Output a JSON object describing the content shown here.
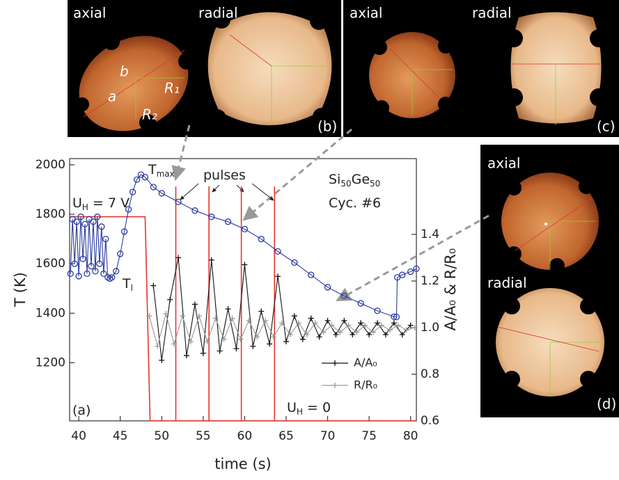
{
  "chart_data": {
    "type": "line",
    "xlabel": "time (s)",
    "ylabel": "T (K)",
    "y2label": "A/A₀ & R/R₀",
    "xlim": [
      38.9,
      80.7
    ],
    "xticks": [
      40,
      45,
      50,
      55,
      60,
      65,
      70,
      75,
      80
    ],
    "ylim": [
      965,
      2025
    ],
    "yticks": [
      1200,
      1400,
      1600,
      1800,
      2000
    ],
    "y2lim": [
      0.6,
      1.725
    ],
    "y2ticks": [
      0.6,
      0.8,
      {
        "value": 1,
        "label": "1.0"
      },
      1.2,
      1.4
    ],
    "pulses": [
      51.7,
      55.7,
      59.6,
      63.6
    ],
    "pulse_color": "#e8332a",
    "series": [
      {
        "color": "#e8332a",
        "marker": "none",
        "axis": "y",
        "x": [
          38.9,
          48.0,
          48.6,
          80.7
        ],
        "values": [
          1790,
          1790,
          965,
          965
        ]
      },
      {
        "color": "#2b3aa0",
        "marker": "circle",
        "axis": "y",
        "x": [
          39,
          39.25,
          39.5,
          39.75,
          40,
          40.25,
          40.5,
          40.75,
          41,
          41.25,
          41.5,
          41.75,
          42,
          42.25,
          42.5,
          42.75,
          43,
          43.25,
          43.5,
          43.75,
          44,
          44.5,
          45,
          45.5,
          46,
          46.5,
          47,
          47.5,
          48,
          49,
          50,
          52,
          54,
          56,
          58,
          60,
          62,
          64,
          66,
          68,
          70,
          72,
          74,
          76,
          78,
          78.3,
          78.4,
          79,
          80,
          80.7
        ],
        "values": [
          1560,
          1780,
          1600,
          1770,
          1550,
          1790,
          1620,
          1760,
          1560,
          1780,
          1590,
          1770,
          1570,
          1790,
          1600,
          1750,
          1560,
          1700,
          1545,
          1540,
          1545,
          1570,
          1640,
          1730,
          1820,
          1890,
          1940,
          1960,
          1950,
          1910,
          1885,
          1850,
          1815,
          1790,
          1770,
          1740,
          1700,
          1650,
          1605,
          1555,
          1505,
          1470,
          1440,
          1410,
          1386,
          1385,
          1545,
          1555,
          1568,
          1580
        ]
      },
      {
        "name": "A/A₀",
        "color": "#111111",
        "marker": "plus",
        "axis": "y2",
        "x": [
          49,
          50,
          51,
          52,
          53,
          54,
          55,
          56,
          57,
          58,
          59,
          60,
          61,
          62,
          63,
          64,
          65,
          66,
          67,
          68,
          69,
          70,
          71,
          72,
          73,
          74,
          75,
          76,
          77,
          78,
          79,
          80
        ],
        "values": [
          1.18,
          0.86,
          1.12,
          1.3,
          0.88,
          1.1,
          0.89,
          1.29,
          0.9,
          1.08,
          0.91,
          1.27,
          0.92,
          1.07,
          0.93,
          1.22,
          0.94,
          1.05,
          0.95,
          1.04,
          0.96,
          1.03,
          0.97,
          1.03,
          0.97,
          1.02,
          0.97,
          1.02,
          0.97,
          1.02,
          0.97,
          1.01
        ]
      },
      {
        "name": "R/R₀",
        "color": "#9a9a9a",
        "marker": "plus",
        "axis": "y2",
        "x": [
          48.5,
          49.5,
          50.5,
          51.5,
          52.5,
          53.5,
          54.5,
          55.5,
          56.5,
          57.5,
          58.5,
          59.5,
          60.5,
          61.5,
          62.5,
          63.5,
          64.5,
          65.5,
          66.5,
          67.5,
          68.5,
          69.5,
          70.5,
          71.5,
          72.5,
          73.5,
          74.5,
          75.5,
          76.5,
          77.5,
          78.5,
          79.5,
          80.5
        ],
        "values": [
          1.05,
          0.92,
          1.06,
          0.93,
          1.05,
          0.94,
          1.05,
          0.94,
          1.04,
          0.95,
          1.04,
          0.95,
          1.03,
          0.96,
          1.03,
          0.96,
          1.02,
          0.97,
          1.02,
          0.97,
          1.02,
          0.98,
          1.01,
          0.98,
          1.01,
          0.98,
          1.01,
          0.98,
          1.01,
          0.99,
          1.01,
          0.99,
          1.0
        ]
      }
    ],
    "annotations": [
      [
        {
          "text": "T"
        },
        {
          "text": "max",
          "sub": true
        }
      ],
      [
        {
          "text": "T"
        },
        {
          "text": "l",
          "sub": true
        }
      ],
      [
        {
          "text": "pulses"
        }
      ],
      [
        {
          "text": "Si"
        },
        {
          "text": "50",
          "sub": true
        },
        {
          "text": "Ge"
        },
        {
          "text": "50",
          "sub": true
        }
      ],
      [
        {
          "text": "Cyc. #6"
        }
      ],
      [
        {
          "text": "U"
        },
        {
          "text": "H",
          "sub": true
        },
        {
          "text": " = 7 V"
        }
      ],
      [
        {
          "text": "U"
        },
        {
          "text": "H",
          "sub": true
        },
        {
          "text": " = 0"
        }
      ],
      [
        {
          "text": "(a)"
        }
      ]
    ]
  },
  "panels": [
    {
      "tag": "(b)",
      "labels": [
        "axial",
        "radial"
      ],
      "symbols": [
        "a",
        "b",
        "R₁",
        "R₂"
      ]
    },
    {
      "tag": "(c)",
      "labels": [
        "axial",
        "radial"
      ]
    },
    {
      "tag": "(d)",
      "labels": [
        "axial",
        "radial"
      ]
    }
  ]
}
